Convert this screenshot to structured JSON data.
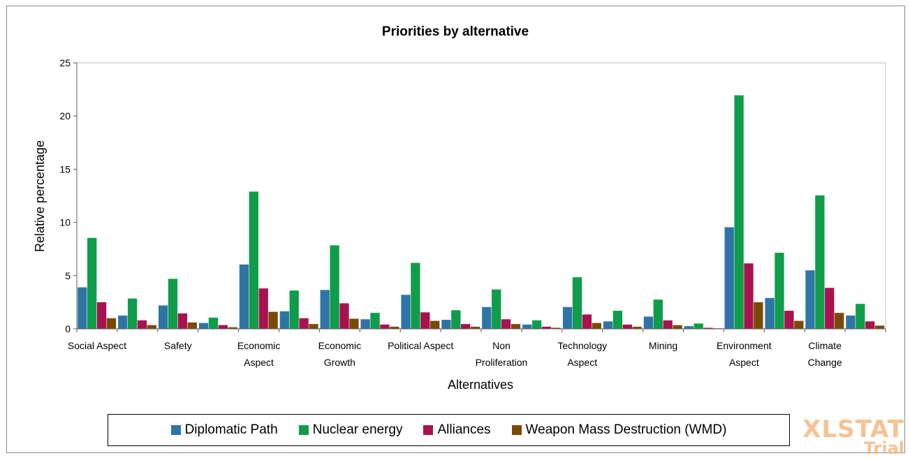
{
  "chart_data": {
    "type": "bar",
    "title": "Priorities by alternative",
    "xlabel": "Alternatives",
    "ylabel": "Relative percentage",
    "ylim": [
      0,
      25
    ],
    "yticks": [
      0,
      5,
      10,
      15,
      20,
      25
    ],
    "grid": false,
    "legend_position": "bottom",
    "categories": [
      "Social Aspect",
      "",
      "Safety",
      "",
      "Economic Aspect",
      "",
      "Economic Growth",
      "",
      "Political Aspect",
      "",
      "Non Proliferation",
      "",
      "Technology Aspect",
      "",
      "Mining",
      "",
      "Environment Aspect",
      "",
      "Climate Change",
      ""
    ],
    "category_label_lines": [
      [
        "Social Aspect"
      ],
      [],
      [
        "Safety"
      ],
      [],
      [
        "Economic",
        "Aspect"
      ],
      [],
      [
        "Economic",
        "Growth"
      ],
      [],
      [
        "Political Aspect"
      ],
      [],
      [
        "Non",
        "Proliferation"
      ],
      [],
      [
        "Technology",
        "Aspect"
      ],
      [],
      [
        "Mining"
      ],
      [],
      [
        "Environment",
        "Aspect"
      ],
      [],
      [
        "Climate",
        "Change"
      ],
      []
    ],
    "series": [
      {
        "name": "Diplomatic Path",
        "color": "#2e75a6",
        "values": [
          3.9,
          1.25,
          2.2,
          0.55,
          6.05,
          1.65,
          3.65,
          0.9,
          3.2,
          0.85,
          2.05,
          0.4,
          2.05,
          0.7,
          1.15,
          0.25,
          9.55,
          2.9,
          5.5,
          1.25
        ]
      },
      {
        "name": "Nuclear energy",
        "color": "#0f9d4a",
        "values": [
          8.55,
          2.85,
          4.7,
          1.05,
          12.9,
          3.6,
          7.85,
          1.5,
          6.2,
          1.75,
          3.7,
          0.8,
          4.85,
          1.7,
          2.75,
          0.5,
          21.95,
          7.15,
          12.55,
          2.35
        ]
      },
      {
        "name": "Alliances",
        "color": "#a8124f",
        "values": [
          2.5,
          0.8,
          1.45,
          0.35,
          3.8,
          1.0,
          2.4,
          0.4,
          1.55,
          0.45,
          0.9,
          0.2,
          1.35,
          0.4,
          0.8,
          0.1,
          6.15,
          1.7,
          3.85,
          0.7
        ]
      },
      {
        "name": "Weapon Mass Destruction (WMD)",
        "color": "#7a4a05",
        "values": [
          1.0,
          0.35,
          0.6,
          0.15,
          1.6,
          0.45,
          0.95,
          0.2,
          0.75,
          0.2,
          0.45,
          0.1,
          0.55,
          0.2,
          0.35,
          0.05,
          2.5,
          0.75,
          1.5,
          0.3
        ]
      }
    ]
  },
  "legend": {
    "items": [
      {
        "label": "Diplomatic Path",
        "color": "#2e75a6"
      },
      {
        "label": "Nuclear energy",
        "color": "#0f9d4a"
      },
      {
        "label": "Alliances",
        "color": "#a8124f"
      },
      {
        "label": "Weapon Mass Destruction (WMD)",
        "color": "#7a4a05"
      }
    ]
  },
  "watermark": {
    "main": "XLSTAT",
    "sub": "Trial"
  }
}
